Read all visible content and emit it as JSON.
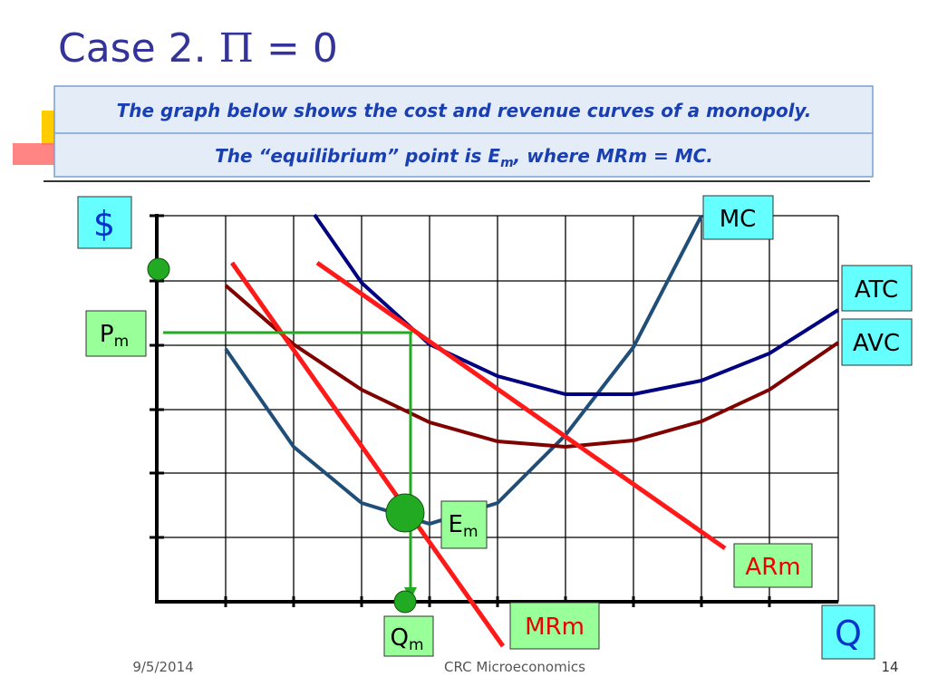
{
  "title": {
    "prefix": "Case 2. ",
    "symbol": "Π",
    "suffix": " = 0"
  },
  "header_box": {
    "line1": "The graph below shows the cost and revenue curves of a monopoly.",
    "line2": {
      "before": "The “equilibrium” point is E",
      "sub": "m",
      "after": ",  where MRm = MC."
    }
  },
  "labels": {
    "dollar": "$",
    "mc": "MC",
    "atc": "ATC",
    "avc": "AVC",
    "pm": {
      "main": "P",
      "sub": "m"
    },
    "em": {
      "main": "E",
      "sub": "m"
    },
    "arm": "ARm",
    "mrm": "MRm",
    "qm": {
      "main": "Q",
      "sub": "m"
    },
    "q": "Q"
  },
  "footer": {
    "date": "9/5/2014",
    "center": "CRC Microeconomics",
    "page": "14"
  }
}
